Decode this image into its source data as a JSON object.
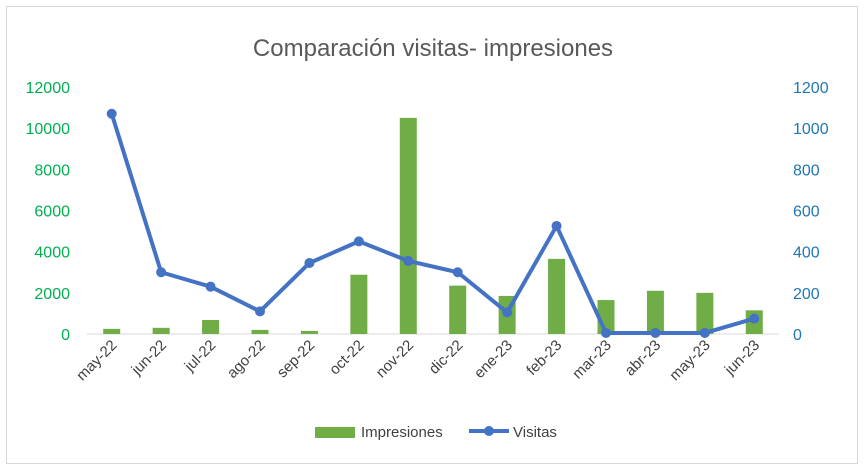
{
  "chart_data": {
    "type": "bar",
    "title": "Comparación visitas- impresiones",
    "categories": [
      "may-22",
      "jun-22",
      "jul-22",
      "ago-22",
      "sep-22",
      "oct-22",
      "nov-22",
      "dic-22",
      "ene-23",
      "feb-23",
      "mar-23",
      "abr-23",
      "may-23",
      "jun-23"
    ],
    "series": [
      {
        "name": "Impresiones",
        "type": "bar",
        "axis": "left",
        "color": "#70ad47",
        "values": [
          250,
          300,
          680,
          200,
          150,
          2880,
          10500,
          2350,
          1850,
          3650,
          1650,
          2100,
          2000,
          1150
        ]
      },
      {
        "name": "Visitas",
        "type": "line",
        "axis": "right",
        "color": "#4472c4",
        "values": [
          1070,
          300,
          230,
          110,
          345,
          450,
          355,
          300,
          105,
          525,
          5,
          5,
          5,
          75
        ]
      }
    ],
    "y_left": {
      "min": 0,
      "max": 12000,
      "ticks": [
        0,
        2000,
        4000,
        6000,
        8000,
        10000,
        12000
      ]
    },
    "y_right": {
      "min": 0,
      "max": 1200,
      "ticks": [
        0,
        200,
        400,
        600,
        800,
        1000,
        1200
      ]
    },
    "grid": false,
    "legend": "bottom"
  }
}
